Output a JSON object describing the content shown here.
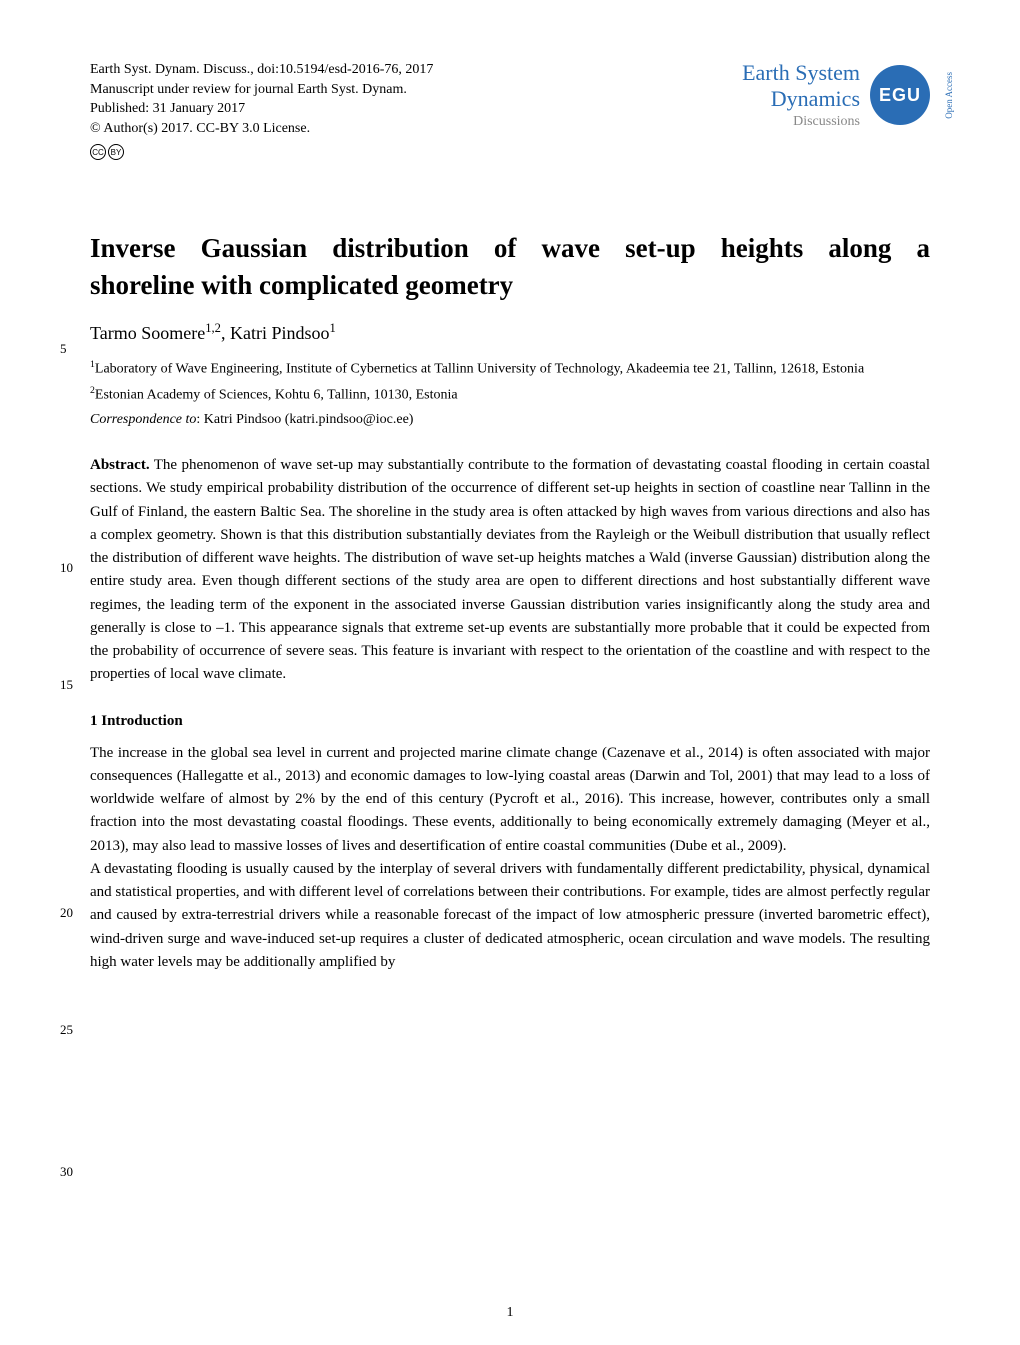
{
  "header": {
    "line1": "Earth Syst. Dynam. Discuss., doi:10.5194/esd-2016-76, 2017",
    "line2": "Manuscript under review for journal Earth Syst. Dynam.",
    "line3": "Published: 31 January 2017",
    "line4": "© Author(s) 2017. CC-BY 3.0 License.",
    "journal_line1": "Earth System",
    "journal_line2": "Dynamics",
    "journal_disc": "Discussions",
    "open_access": "Open Access",
    "egu": "EGU",
    "cc": "CC",
    "by": "BY"
  },
  "title": {
    "line1": "Inverse Gaussian distribution of wave set-up heights along a",
    "line2": "shoreline with complicated geometry"
  },
  "authors": "Tarmo Soomere",
  "author_sup1": "1,2",
  "authors2": ", Katri Pindsoo",
  "author_sup2": "1",
  "affil1_sup": "1",
  "affil1": "Laboratory of Wave Engineering, Institute of Cybernetics at Tallinn University of Technology, Akadeemia tee 21, Tallinn, 12618, Estonia",
  "affil2_sup": "2",
  "affil2": "Estonian Academy of Sciences, Kohtu 6, Tallinn, 10130, Estonia",
  "corr_label": "Correspondence to",
  "corr_text": ": Katri Pindsoo (katri.pindsoo@ioc.ee)",
  "abstract_lead": "Abstract.",
  "abstract_body": " The phenomenon of wave set-up may substantially contribute to the formation of devastating coastal flooding in certain coastal sections. We study empirical probability distribution of the occurrence of different set-up heights in section of coastline near Tallinn in the Gulf of Finland, the eastern Baltic Sea. The shoreline in the study area is often attacked by high waves from various directions and also has a complex geometry. Shown is that this distribution substantially deviates from the Rayleigh or the Weibull distribution that usually reflect the distribution of different wave heights. The distribution of wave set-up heights matches a Wald (inverse Gaussian) distribution along the entire study area. Even though different sections of the study area are open to different directions and host substantially different wave regimes, the leading term of the exponent in the associated inverse Gaussian distribution varies insignificantly along the study area and generally is close to –1. This appearance signals that extreme set-up events are substantially more probable that it could be expected from the probability of occurrence of severe seas. This feature is invariant with respect to the orientation of the coastline and with respect to the properties of local wave climate.",
  "section1": "1 Introduction",
  "para1": "The increase in the global sea level in current and projected marine climate change (Cazenave et al., 2014) is often associated with major consequences (Hallegatte et al., 2013) and economic damages to low-lying coastal areas (Darwin and Tol, 2001) that may lead to a loss of worldwide welfare of almost by 2% by the end of this century (Pycroft et al., 2016). This increase, however, contributes only a small fraction into the most devastating coastal floodings. These events, additionally to being economically extremely damaging (Meyer et al., 2013), may also lead to massive losses of lives and desertification of entire coastal communities (Dube et al., 2009).",
  "para2": "A devastating flooding is usually caused by the interplay of several drivers with fundamentally different predictability, physical, dynamical and statistical properties, and with different level of correlations between their contributions. For example, tides are almost perfectly regular and caused by extra-terrestrial drivers while a reasonable forecast of the impact of low atmospheric pressure (inverted barometric effect), wind-driven surge and wave-induced set-up requires a cluster of dedicated atmospheric, ocean circulation and wave models. The resulting high water levels may be additionally amplified by",
  "line_numbers": {
    "n5": "5",
    "n10": "10",
    "n15": "15",
    "n20": "20",
    "n25": "25",
    "n30": "30"
  },
  "page_number": "1",
  "colors": {
    "journal_blue": "#2a6db5",
    "disc_grey": "#888888",
    "text": "#000000",
    "bg": "#ffffff"
  },
  "typography": {
    "body_family": "Times New Roman",
    "body_size_pt": 11,
    "title_size_pt": 20,
    "authors_size_pt": 13,
    "header_size_pt": 10
  }
}
